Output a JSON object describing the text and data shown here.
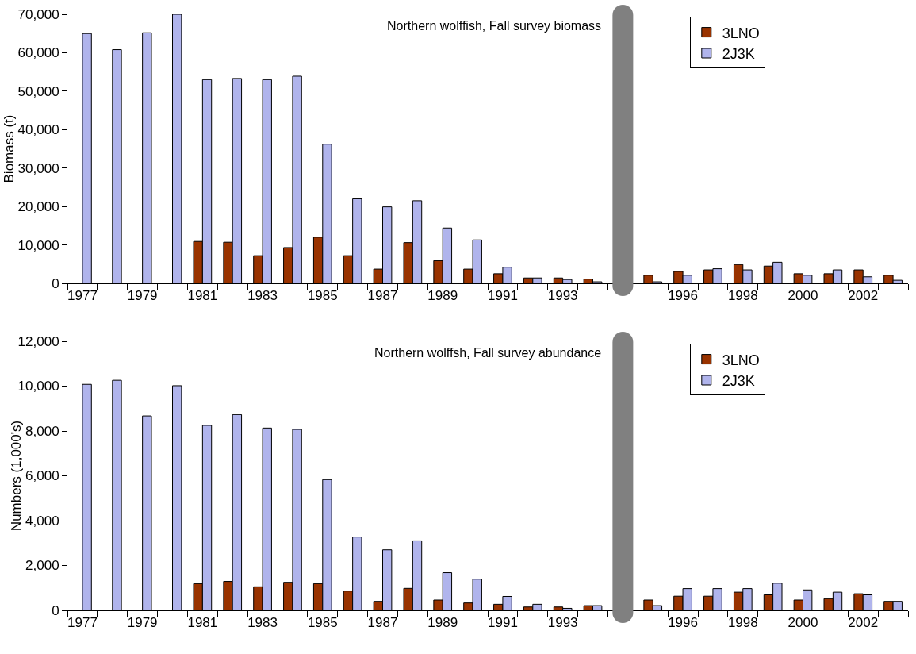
{
  "chart_data": [
    {
      "type": "bar",
      "title": "Northern wolffish, Fall survey biomass",
      "ylabel": "Biomass (t)",
      "categories": [
        "1977",
        null,
        "1979",
        null,
        "1981",
        null,
        "1983",
        null,
        "1985",
        null,
        "1987",
        null,
        "1989",
        null,
        "1991",
        null,
        "1993",
        null,
        null,
        null,
        "1996",
        null,
        "1998",
        null,
        "2000",
        null,
        "2002",
        null
      ],
      "series": [
        {
          "name": "3LNO",
          "color": "#993300",
          "values": [
            null,
            null,
            null,
            null,
            10900,
            10700,
            7200,
            9300,
            12000,
            7200,
            3700,
            10600,
            5900,
            3700,
            2500,
            1400,
            1400,
            1100,
            null,
            2100,
            3100,
            3500,
            4900,
            4500,
            2500,
            2500,
            3500,
            2100
          ]
        },
        {
          "name": "2J3K",
          "color": "#b0b4ec",
          "values": [
            65000,
            60800,
            65200,
            70000,
            53000,
            53300,
            53000,
            53900,
            36200,
            22000,
            19900,
            21500,
            14400,
            11300,
            4200,
            1400,
            1000,
            400,
            null,
            400,
            2100,
            3800,
            3500,
            5500,
            2100,
            3500,
            1700,
            800
          ]
        }
      ],
      "ylim": [
        0,
        70000
      ],
      "yticks": [
        {
          "value": 0,
          "label": "0"
        },
        {
          "value": 10000,
          "label": "10,000"
        },
        {
          "value": 20000,
          "label": "20,000"
        },
        {
          "value": 30000,
          "label": "30,000"
        },
        {
          "value": 40000,
          "label": "40,000"
        },
        {
          "value": 50000,
          "label": "50,000"
        },
        {
          "value": 60000,
          "label": "60,000"
        },
        {
          "value": 70000,
          "label": "70,000"
        }
      ],
      "legend": "top right"
    },
    {
      "type": "bar",
      "title": "Northern wolffsh, Fall survey abundance",
      "ylabel": "Numbers (1,000's)",
      "categories": [
        "1977",
        null,
        "1979",
        null,
        "1981",
        null,
        "1983",
        null,
        "1985",
        null,
        "1987",
        null,
        "1989",
        null,
        "1991",
        null,
        "1993",
        null,
        null,
        null,
        "1996",
        null,
        "1998",
        null,
        "2000",
        null,
        "2002",
        null
      ],
      "series": [
        {
          "name": "3LNO",
          "color": "#993300",
          "values": [
            null,
            null,
            null,
            null,
            1190,
            1290,
            1050,
            1250,
            1190,
            860,
            400,
            980,
            460,
            330,
            270,
            150,
            150,
            210,
            null,
            460,
            630,
            630,
            810,
            690,
            460,
            520,
            740,
            400
          ]
        },
        {
          "name": "2J3K",
          "color": "#b0b4ec",
          "values": [
            10080,
            10260,
            8670,
            10020,
            8250,
            8730,
            8130,
            8070,
            5830,
            3270,
            2700,
            3100,
            1680,
            1390,
            620,
            270,
            90,
            210,
            null,
            210,
            970,
            970,
            970,
            1210,
            910,
            810,
            690,
            400
          ]
        }
      ],
      "ylim": [
        0,
        12000
      ],
      "yticks": [
        {
          "value": 0,
          "label": "0"
        },
        {
          "value": 2000,
          "label": "2,000"
        },
        {
          "value": 4000,
          "label": "4,000"
        },
        {
          "value": 6000,
          "label": "6,000"
        },
        {
          "value": 8000,
          "label": "8,000"
        },
        {
          "value": 10000,
          "label": "10,000"
        },
        {
          "value": 12000,
          "label": "12,000"
        }
      ],
      "legend": "top right"
    }
  ]
}
